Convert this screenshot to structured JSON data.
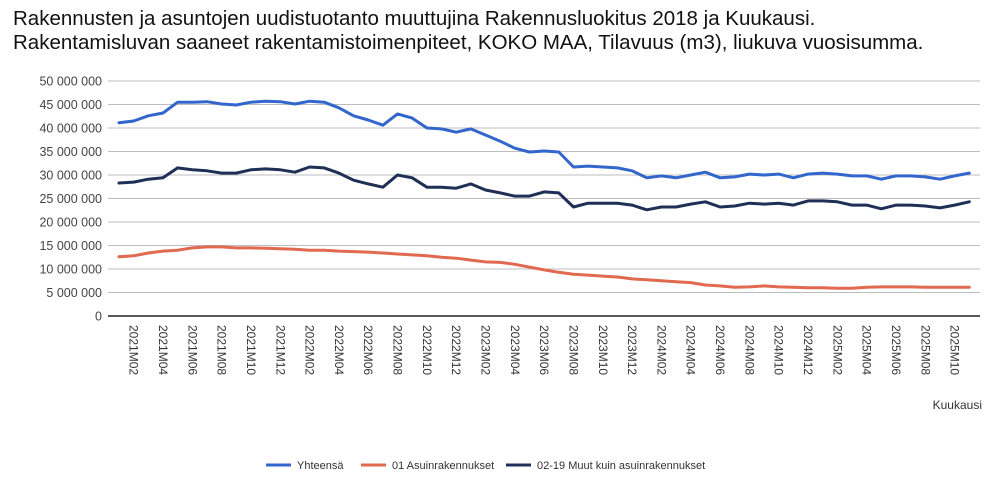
{
  "chart_data": {
    "type": "line",
    "title": "Rakennusten ja asuntojen uudistuotanto muuttujina Rakennusluokitus 2018 ja Kuukausi. Rakentamisluvan saaneet rakentamistoimenpiteet, KOKO MAA, Tilavuus (m3), liukuva vuosisumma.",
    "xlabel": "Kuukausi",
    "ylabel": "",
    "ylim": [
      0,
      50000000
    ],
    "yticks": [
      0,
      5000000,
      10000000,
      15000000,
      20000000,
      25000000,
      30000000,
      35000000,
      40000000,
      45000000,
      50000000
    ],
    "ytick_labels": [
      "0",
      "5 000 000",
      "10 000 000",
      "15 000 000",
      "20 000 000",
      "25 000 000",
      "30 000 000",
      "35 000 000",
      "40 000 000",
      "45 000 000",
      "50 000 000"
    ],
    "grid": true,
    "legend_position": "bottom",
    "x": [
      "2021M01",
      "2021M02",
      "2021M03",
      "2021M04",
      "2021M05",
      "2021M06",
      "2021M07",
      "2021M08",
      "2021M09",
      "2021M10",
      "2021M11",
      "2021M12",
      "2022M01",
      "2022M02",
      "2022M03",
      "2022M04",
      "2022M05",
      "2022M06",
      "2022M07",
      "2022M08",
      "2022M09",
      "2022M10",
      "2022M11",
      "2022M12",
      "2023M01",
      "2023M02",
      "2023M03",
      "2023M04",
      "2023M05",
      "2023M06",
      "2023M07",
      "2023M08",
      "2023M09",
      "2023M10",
      "2023M11",
      "2023M12",
      "2024M01",
      "2024M02",
      "2024M03",
      "2024M04",
      "2024M05",
      "2024M06",
      "2024M07",
      "2024M08",
      "2024M09",
      "2024M10",
      "2024M11",
      "2024M12",
      "2025M01",
      "2025M02",
      "2025M03",
      "2025M04",
      "2025M05",
      "2025M06",
      "2025M07",
      "2025M08",
      "2025M09",
      "2025M10",
      "2025M11"
    ],
    "xtick_labels": [
      "2021M02",
      "2021M04",
      "2021M06",
      "2021M08",
      "2021M10",
      "2021M12",
      "2022M02",
      "2022M04",
      "2022M06",
      "2022M08",
      "2022M10",
      "2022M12",
      "2023M02",
      "2023M04",
      "2023M06",
      "2023M08",
      "2023M10",
      "2023M12",
      "2024M02",
      "2024M04",
      "2024M06",
      "2024M08",
      "2024M10",
      "2024M12",
      "2025M02",
      "2025M04",
      "2025M06",
      "2025M08",
      "2025M10"
    ],
    "series": [
      {
        "name": "Yhteensä",
        "color": "#3366cc",
        "values": [
          41100000,
          41500000,
          42600000,
          43200000,
          45500000,
          45500000,
          45600000,
          45100000,
          44900000,
          45500000,
          45700000,
          45600000,
          45100000,
          45700000,
          45500000,
          44300000,
          42600000,
          41700000,
          40600000,
          43000000,
          42100000,
          40000000,
          39800000,
          39100000,
          39800000,
          38500000,
          37200000,
          35700000,
          34900000,
          35100000,
          34900000,
          31700000,
          31900000,
          31700000,
          31500000,
          30900000,
          29400000,
          29800000,
          29400000,
          30000000,
          30600000,
          29400000,
          29600000,
          30200000,
          30000000,
          30200000,
          29400000,
          30200000,
          30400000,
          30200000,
          29800000,
          29800000,
          29100000,
          29800000,
          29800000,
          29600000,
          29100000,
          29800000,
          30400000
        ]
      },
      {
        "name": "01 Asuinrakennukset",
        "color": "#e06950",
        "values": [
          12600000,
          12800000,
          13400000,
          13800000,
          14000000,
          14500000,
          14700000,
          14700000,
          14500000,
          14500000,
          14400000,
          14300000,
          14200000,
          14000000,
          14000000,
          13800000,
          13700000,
          13600000,
          13400000,
          13200000,
          13000000,
          12800000,
          12500000,
          12300000,
          11900000,
          11500000,
          11400000,
          11000000,
          10400000,
          9800000,
          9300000,
          8900000,
          8700000,
          8500000,
          8300000,
          7900000,
          7700000,
          7500000,
          7300000,
          7100000,
          6600000,
          6400000,
          6100000,
          6200000,
          6400000,
          6200000,
          6100000,
          6000000,
          6000000,
          5900000,
          5900000,
          6100000,
          6200000,
          6200000,
          6200000,
          6100000,
          6100000,
          6100000,
          6100000
        ]
      },
      {
        "name": "02-19 Muut kuin asuinrakennukset",
        "color": "#1f2f55",
        "values": [
          28300000,
          28500000,
          29100000,
          29400000,
          31500000,
          31100000,
          30900000,
          30400000,
          30400000,
          31100000,
          31300000,
          31100000,
          30600000,
          31700000,
          31500000,
          30400000,
          28900000,
          28100000,
          27400000,
          30000000,
          29400000,
          27400000,
          27400000,
          27200000,
          28100000,
          26800000,
          26200000,
          25500000,
          25500000,
          26400000,
          26200000,
          23200000,
          24000000,
          24000000,
          24000000,
          23600000,
          22600000,
          23200000,
          23200000,
          23800000,
          24300000,
          23200000,
          23400000,
          24000000,
          23800000,
          24000000,
          23600000,
          24500000,
          24500000,
          24300000,
          23600000,
          23600000,
          22800000,
          23600000,
          23600000,
          23400000,
          23000000,
          23600000,
          24300000
        ]
      }
    ]
  }
}
